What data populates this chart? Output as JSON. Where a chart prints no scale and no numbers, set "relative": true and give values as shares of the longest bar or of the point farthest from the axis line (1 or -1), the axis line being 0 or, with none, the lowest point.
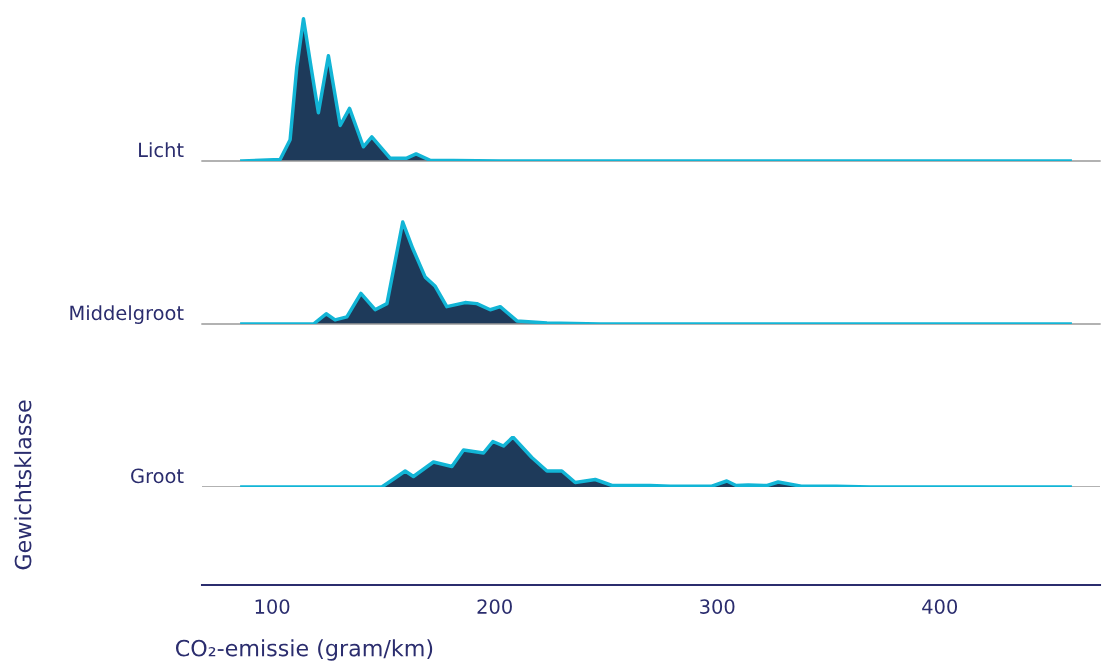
{
  "chart_data": [
    {
      "type": "area",
      "relative": true,
      "xlim": [
        68.5,
        472
      ],
      "tick_labels": false,
      "series": [
        {
          "name": "Licht",
          "color": "#12b5d6",
          "x": [
            86.4,
            103.6,
            108.1,
            111.1,
            114.1,
            117.1,
            120.8,
            125.3,
            130.6,
            134.8,
            141.0,
            144.8,
            153.0,
            160.5,
            164.7,
            171.0,
            202.5,
            458.6
          ],
          "values": [
            0,
            0.01,
            0.15,
            0.66,
            1.0,
            0.7,
            0.34,
            0.74,
            0.25,
            0.37,
            0.1,
            0.17,
            0.02,
            0.02,
            0.05,
            0.005,
            0,
            0
          ]
        }
      ]
    },
    {
      "type": "area",
      "relative": true,
      "xlim": [
        68.5,
        472
      ],
      "tick_labels": false,
      "series": [
        {
          "name": "Middelgroot",
          "color": "#12b5d6",
          "x": [
            86.4,
            118.6,
            124.3,
            128.3,
            133.6,
            139.9,
            146.3,
            151.6,
            158.7,
            163.2,
            168.8,
            173.3,
            178.5,
            186.7,
            192.0,
            198.0,
            202.5,
            210.0,
            223.5,
            247.4,
            458.6
          ],
          "values": [
            0,
            0,
            0.1,
            0.04,
            0.07,
            0.3,
            0.14,
            0.2,
            1.0,
            0.74,
            0.46,
            0.37,
            0.17,
            0.21,
            0.2,
            0.14,
            0.17,
            0.03,
            0.01,
            0,
            0
          ]
        }
      ]
    },
    {
      "type": "area",
      "relative": true,
      "xlim": [
        68.5,
        472
      ],
      "xticks": [
        100,
        200,
        300,
        400
      ],
      "tick_labels": "x",
      "xlabel": "CO₂-emissie (gram/km)",
      "annotations": [
        "Gewichtsklasse"
      ],
      "series": [
        {
          "name": "Groot",
          "color": "#12b5d6",
          "x": [
            86.4,
            149.3,
            155.3,
            159.8,
            163.5,
            172.5,
            180.8,
            186.0,
            190.5,
            195.0,
            199.2,
            204.0,
            208.2,
            216.7,
            223.5,
            230.2,
            236.2,
            245.2,
            252.7,
            269.8,
            278.9,
            297.6,
            304.3,
            308.5,
            313.9,
            322.5,
            327.4,
            337.8,
            353.5,
            368.8,
            458.6
          ],
          "values": [
            0,
            0,
            0.18,
            0.32,
            0.21,
            0.5,
            0.41,
            0.74,
            0.71,
            0.68,
            0.91,
            0.82,
            1.0,
            0.59,
            0.32,
            0.32,
            0.09,
            0.15,
            0.03,
            0.03,
            0.015,
            0.015,
            0.12,
            0.03,
            0.04,
            0.03,
            0.1,
            0.015,
            0.015,
            0,
            0
          ]
        }
      ]
    }
  ]
}
